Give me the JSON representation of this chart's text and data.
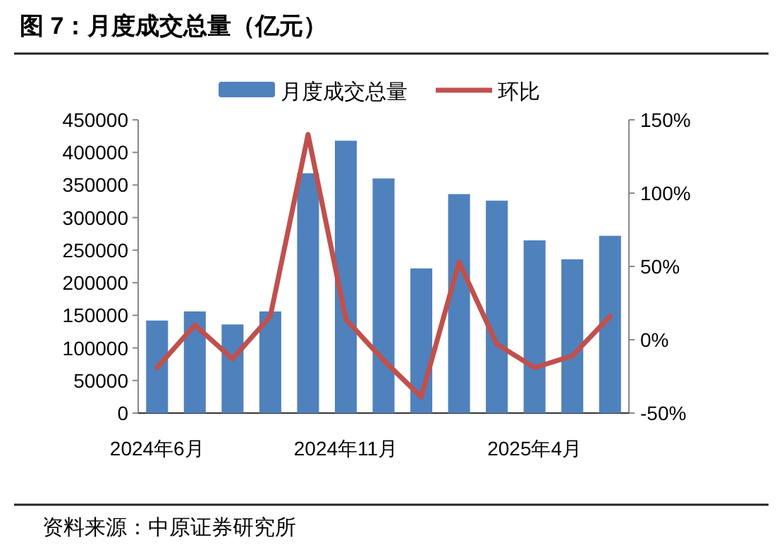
{
  "chart_data": {
    "type": "bar",
    "title": "图 7：月度成交总量（亿元）",
    "categories": [
      "2024年6月",
      null,
      null,
      null,
      null,
      "2024年11月",
      null,
      null,
      null,
      null,
      "2025年4月",
      null,
      null
    ],
    "series": [
      {
        "name": "月度成交总量",
        "color": "#4f81bd",
        "values": [
          142000,
          156000,
          136000,
          156000,
          368000,
          418000,
          360000,
          222000,
          336000,
          326000,
          265000,
          236000,
          272000
        ]
      },
      {
        "name": "环比",
        "type": "line",
        "axis": "y2",
        "color": "#c0504d",
        "values": [
          -19,
          10,
          -13,
          16,
          140,
          14,
          -14,
          -39,
          53,
          -3,
          -19,
          -11,
          16
        ]
      }
    ],
    "ylim": [
      0,
      450000
    ],
    "yticks": [
      0,
      50000,
      100000,
      150000,
      200000,
      250000,
      300000,
      350000,
      400000,
      450000
    ],
    "y2lim": [
      -50,
      150
    ],
    "y2ticks": [
      {
        "value": -50,
        "label": "-50%"
      },
      {
        "value": 0,
        "label": "0%"
      },
      {
        "value": 50,
        "label": "50%"
      },
      {
        "value": 100,
        "label": "100%"
      },
      {
        "value": 150,
        "label": "150%"
      }
    ],
    "legend": "top",
    "grid": false,
    "marker": "none",
    "line_style": "solid",
    "annotations": [
      "资料来源：中原证券研究所"
    ]
  }
}
